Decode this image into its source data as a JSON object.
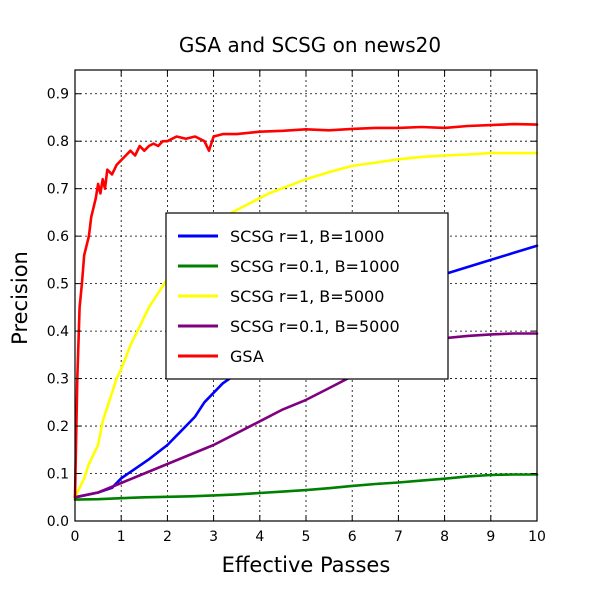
{
  "chart_data": {
    "type": "line",
    "title": "GSA and SCSG on news20",
    "xlabel": "Effective Passes",
    "ylabel": "Precision",
    "xlim": [
      0,
      10
    ],
    "ylim": [
      0.0,
      0.95
    ],
    "xticks": [
      "0",
      "1",
      "2",
      "3",
      "4",
      "5",
      "6",
      "7",
      "8",
      "9",
      "10"
    ],
    "yticks": [
      "0.0",
      "0.1",
      "0.2",
      "0.3",
      "0.4",
      "0.5",
      "0.6",
      "0.7",
      "0.8",
      "0.9"
    ],
    "grid": true,
    "legend_position": "center-left",
    "series": [
      {
        "name": "SCSG r=1, B=1000",
        "color": "#0000ff",
        "x": [
          0,
          0.5,
          0.8,
          1.0,
          1.3,
          1.6,
          2.0,
          2.3,
          2.6,
          2.8,
          3.0,
          3.2,
          3.5,
          3.8,
          4.0,
          4.3,
          4.6,
          5.0,
          5.5,
          6.0,
          6.5,
          7.0,
          7.5,
          8.0,
          8.5,
          9.0,
          9.5,
          10.0
        ],
        "values": [
          0.05,
          0.06,
          0.07,
          0.09,
          0.11,
          0.13,
          0.16,
          0.19,
          0.22,
          0.25,
          0.27,
          0.29,
          0.31,
          0.33,
          0.34,
          0.36,
          0.37,
          0.4,
          0.43,
          0.46,
          0.48,
          0.5,
          0.51,
          0.52,
          0.535,
          0.55,
          0.565,
          0.58
        ]
      },
      {
        "name": "SCSG r=0.1, B=1000",
        "color": "#008000",
        "x": [
          0,
          0.5,
          1.0,
          1.5,
          2.0,
          2.5,
          3.0,
          3.5,
          4.0,
          4.5,
          5.0,
          5.5,
          6.0,
          6.5,
          7.0,
          7.5,
          8.0,
          8.5,
          9.0,
          9.5,
          10.0
        ],
        "values": [
          0.045,
          0.046,
          0.048,
          0.05,
          0.051,
          0.052,
          0.054,
          0.056,
          0.059,
          0.062,
          0.065,
          0.069,
          0.074,
          0.078,
          0.081,
          0.085,
          0.089,
          0.094,
          0.097,
          0.098,
          0.098
        ]
      },
      {
        "name": "SCSG r=1, B=5000",
        "color": "#ffff00",
        "x": [
          0,
          0.1,
          0.2,
          0.3,
          0.4,
          0.5,
          0.6,
          0.7,
          0.8,
          0.9,
          1.0,
          1.2,
          1.4,
          1.6,
          1.8,
          2.0,
          2.3,
          2.6,
          3.0,
          3.4,
          3.8,
          4.2,
          4.6,
          5.0,
          5.5,
          6.0,
          6.5,
          7.0,
          7.5,
          8.0,
          8.5,
          9.0,
          9.5,
          10.0
        ],
        "values": [
          0.05,
          0.07,
          0.09,
          0.12,
          0.14,
          0.16,
          0.21,
          0.24,
          0.27,
          0.3,
          0.32,
          0.37,
          0.41,
          0.45,
          0.48,
          0.51,
          0.55,
          0.58,
          0.62,
          0.65,
          0.67,
          0.69,
          0.705,
          0.72,
          0.735,
          0.748,
          0.755,
          0.762,
          0.767,
          0.77,
          0.772,
          0.775,
          0.775,
          0.775
        ]
      },
      {
        "name": "SCSG r=0.1, B=5000",
        "color": "#800080",
        "x": [
          0,
          0.5,
          1.0,
          1.5,
          2.0,
          2.5,
          3.0,
          3.5,
          4.0,
          4.5,
          5.0,
          5.5,
          6.0,
          6.5,
          7.0,
          7.5,
          8.0,
          8.5,
          9.0,
          9.5,
          10.0
        ],
        "values": [
          0.05,
          0.06,
          0.08,
          0.1,
          0.12,
          0.14,
          0.16,
          0.185,
          0.21,
          0.235,
          0.255,
          0.28,
          0.305,
          0.33,
          0.355,
          0.37,
          0.385,
          0.39,
          0.393,
          0.395,
          0.395
        ]
      },
      {
        "name": "GSA",
        "color": "#ff0000",
        "x": [
          0,
          0.05,
          0.1,
          0.15,
          0.2,
          0.3,
          0.35,
          0.4,
          0.45,
          0.5,
          0.55,
          0.6,
          0.65,
          0.7,
          0.8,
          0.9,
          1.0,
          1.1,
          1.2,
          1.3,
          1.4,
          1.5,
          1.6,
          1.7,
          1.8,
          1.9,
          2.0,
          2.2,
          2.4,
          2.6,
          2.8,
          2.9,
          3.0,
          3.2,
          3.5,
          4.0,
          4.5,
          5.0,
          5.5,
          6.0,
          6.5,
          7.0,
          7.5,
          8.0,
          8.5,
          9.0,
          9.5,
          10.0
        ],
        "values": [
          0.05,
          0.3,
          0.45,
          0.5,
          0.56,
          0.6,
          0.64,
          0.66,
          0.68,
          0.71,
          0.69,
          0.72,
          0.7,
          0.74,
          0.73,
          0.75,
          0.76,
          0.77,
          0.78,
          0.77,
          0.79,
          0.78,
          0.79,
          0.795,
          0.79,
          0.8,
          0.8,
          0.81,
          0.805,
          0.81,
          0.8,
          0.78,
          0.81,
          0.815,
          0.815,
          0.82,
          0.822,
          0.825,
          0.823,
          0.826,
          0.828,
          0.828,
          0.83,
          0.828,
          0.832,
          0.834,
          0.836,
          0.835
        ]
      }
    ]
  }
}
